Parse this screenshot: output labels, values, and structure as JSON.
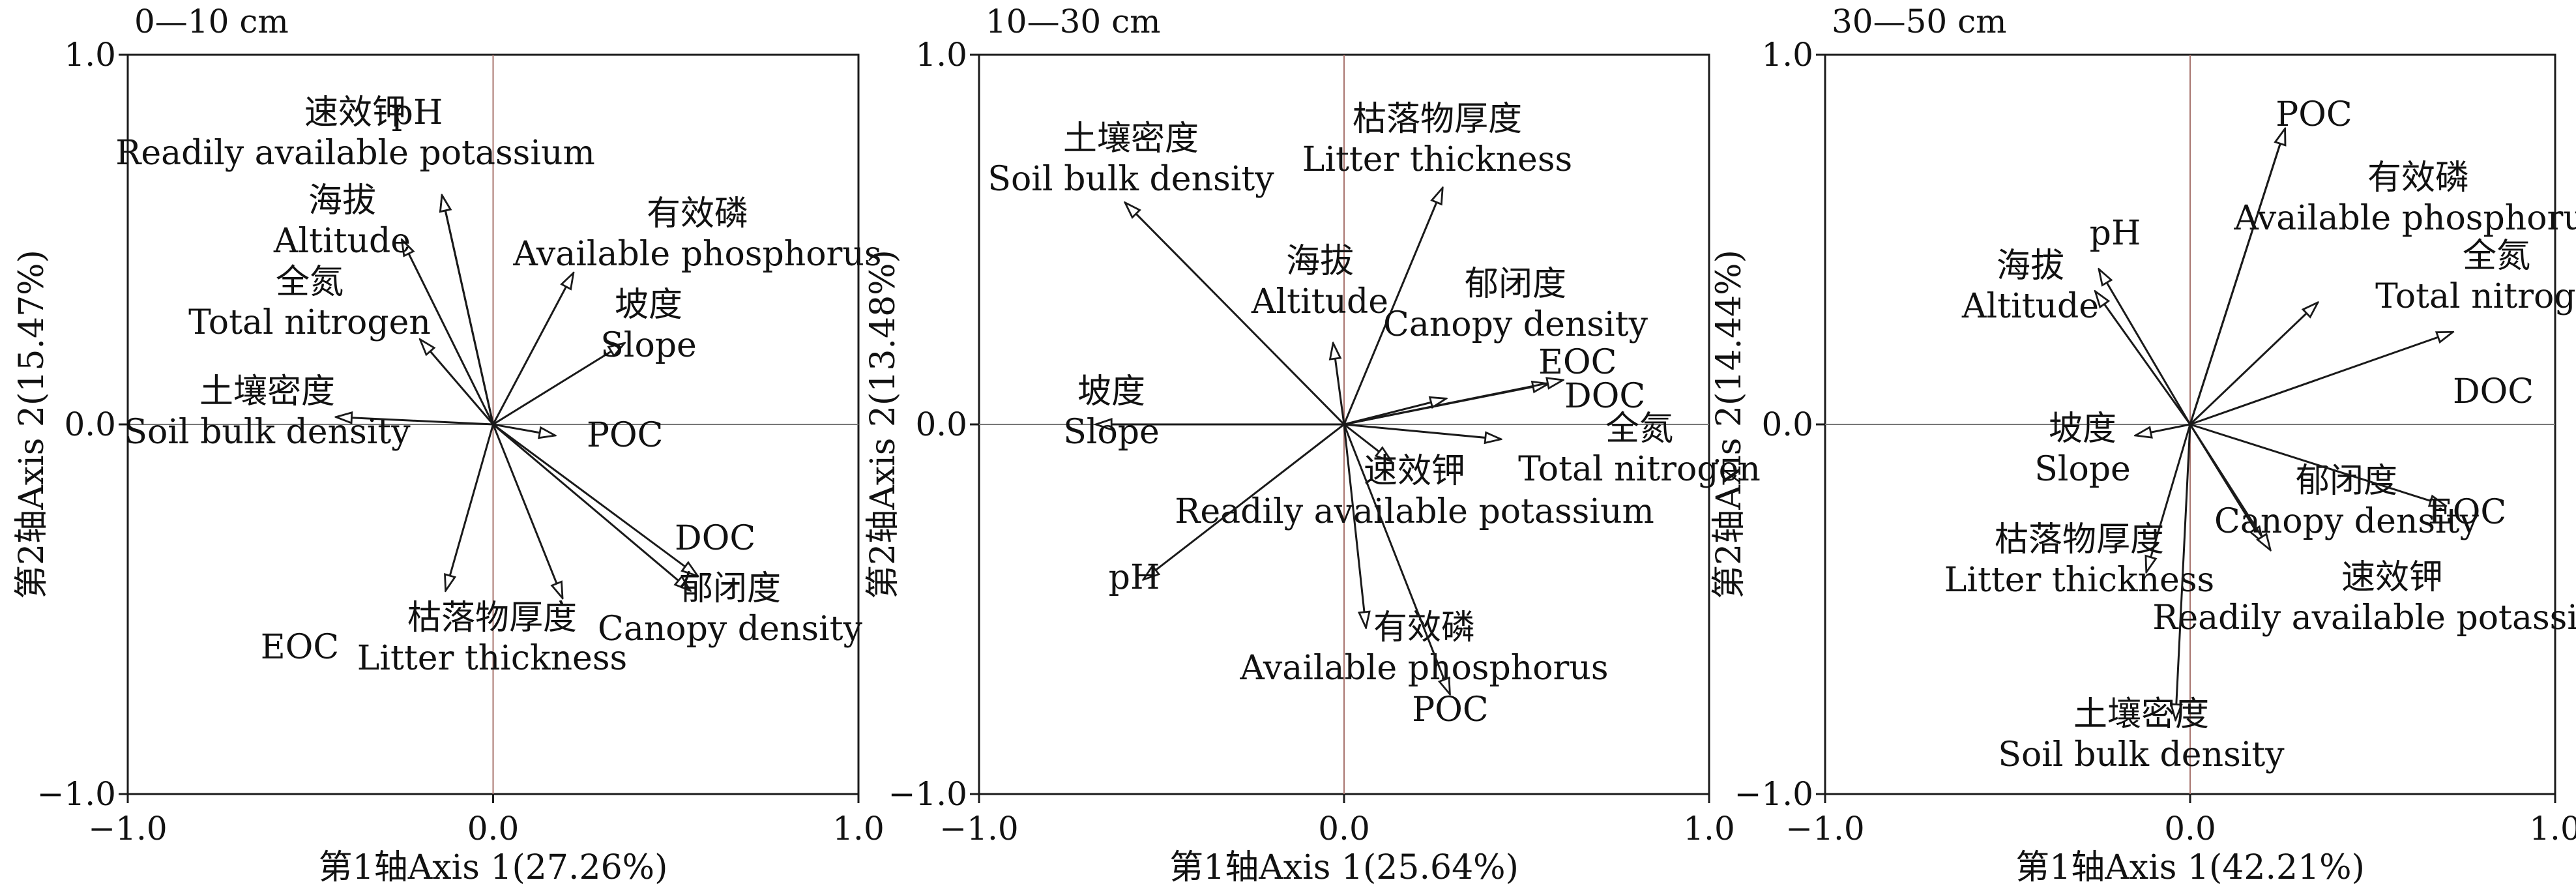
{
  "colors": {
    "axis": "#1a1a1a",
    "zero_line": "#a8756f",
    "arrow": "#1a1a1a"
  },
  "chart_data": [
    {
      "type": "scatter",
      "title": "0—10 cm",
      "xlabel": "第1轴Axis 1(27.26%)",
      "ylabel": "第2轴Axis 2(15.47%)",
      "xlim": [
        -1.0,
        1.0
      ],
      "ylim": [
        -1.0,
        1.0
      ],
      "xticks": [
        "−1.0",
        "0.0",
        "1.0"
      ],
      "yticks": [
        "1.0",
        "0.0",
        "−1.0"
      ],
      "vectors": [
        {
          "labels": [
            "pH"
          ],
          "x": -0.14,
          "y": 0.62
        },
        {
          "labels": [
            "速效钾",
            "Readily available potassium"
          ],
          "x": -0.14,
          "y": 0.62
        },
        {
          "labels": [
            "海拔",
            "Altitude"
          ],
          "x": -0.25,
          "y": 0.5
        },
        {
          "labels": [
            "全氮",
            "Total nitrogen"
          ],
          "x": -0.2,
          "y": 0.23
        },
        {
          "labels": [
            "土壤密度",
            "Soil bulk density"
          ],
          "x": -0.43,
          "y": 0.02
        },
        {
          "labels": [
            "有效磷",
            "Available phosphorus"
          ],
          "x": 0.22,
          "y": 0.41
        },
        {
          "labels": [
            "坡度",
            "Slope"
          ],
          "x": 0.36,
          "y": 0.22
        },
        {
          "labels": [
            "POC"
          ],
          "x": 0.17,
          "y": -0.03
        },
        {
          "labels": [
            "DOC"
          ],
          "x": 0.56,
          "y": -0.41
        },
        {
          "labels": [
            "郁闭度",
            "Canopy density"
          ],
          "x": 0.54,
          "y": -0.45
        },
        {
          "labels": [
            "枯落物厚度",
            "Litter thickness"
          ],
          "x": 0.19,
          "y": -0.47
        },
        {
          "labels": [
            "EOC"
          ],
          "x": -0.13,
          "y": -0.45
        }
      ]
    },
    {
      "type": "scatter",
      "title": "10—30 cm",
      "xlabel": "第1轴Axis 1(25.64%)",
      "ylabel": "第2轴Axis 2(13.48%)",
      "xlim": [
        -1.0,
        1.0
      ],
      "ylim": [
        -1.0,
        1.0
      ],
      "xticks": [
        "−1.0",
        "0.0",
        "1.0"
      ],
      "yticks": [
        "1.0",
        "0.0",
        "−1.0"
      ],
      "vectors": [
        {
          "labels": [
            "土壤密度",
            "Soil bulk density"
          ],
          "x": -0.6,
          "y": 0.6
        },
        {
          "labels": [
            "枯落物厚度",
            "Litter thickness"
          ],
          "x": 0.27,
          "y": 0.64
        },
        {
          "labels": [
            "海拔",
            "Altitude"
          ],
          "x": -0.03,
          "y": 0.22
        },
        {
          "labels": [
            "郁闭度",
            "Canopy density"
          ],
          "x": 0.28,
          "y": 0.07
        },
        {
          "labels": [
            "EOC"
          ],
          "x": 0.56,
          "y": 0.11
        },
        {
          "labels": [
            "DOC"
          ],
          "x": 0.6,
          "y": 0.12
        },
        {
          "labels": [
            "全氮",
            "Total nitrogen"
          ],
          "x": 0.43,
          "y": -0.04
        },
        {
          "labels": [
            "坡度",
            "Slope"
          ],
          "x": -0.68,
          "y": 0.0
        },
        {
          "labels": [
            "速效钾",
            "Readily available potassium"
          ],
          "x": 0.13,
          "y": -0.1
        },
        {
          "labels": [
            "pH"
          ],
          "x": -0.55,
          "y": -0.42
        },
        {
          "labels": [
            "有效磷",
            "Available phosphorus"
          ],
          "x": 0.06,
          "y": -0.55
        },
        {
          "labels": [
            "POC"
          ],
          "x": 0.29,
          "y": -0.73
        }
      ]
    },
    {
      "type": "scatter",
      "title": "30—50 cm",
      "xlabel": "第1轴Axis 1(42.21%)",
      "ylabel": "第2轴Axis 2(14.44%)",
      "xlim": [
        -1.0,
        1.0
      ],
      "ylim": [
        -1.0,
        1.0
      ],
      "xticks": [
        "−1.0",
        "0.0",
        "1.0"
      ],
      "yticks": [
        "1.0",
        "0.0",
        "−1.0"
      ],
      "vectors": [
        {
          "labels": [
            "POC"
          ],
          "x": 0.26,
          "y": 0.8
        },
        {
          "labels": [
            "有效磷",
            "Available phosphorus"
          ],
          "x": 0.26,
          "y": 0.8
        },
        {
          "labels": [
            "pH"
          ],
          "x": -0.25,
          "y": 0.42
        },
        {
          "labels": [
            "海拔",
            "Altitude"
          ],
          "x": -0.26,
          "y": 0.36
        },
        {
          "labels": [
            "全氮",
            "Total nitrogen"
          ],
          "x": 0.35,
          "y": 0.33
        },
        {
          "labels": [
            "DOC"
          ],
          "x": 0.72,
          "y": 0.25
        },
        {
          "labels": [
            "坡度",
            "Slope"
          ],
          "x": -0.15,
          "y": -0.03
        },
        {
          "labels": [
            "郁闭度",
            "Canopy density"
          ],
          "x": 0.2,
          "y": -0.32
        },
        {
          "labels": [
            "EOC"
          ],
          "x": 0.7,
          "y": -0.22
        },
        {
          "labels": [
            "枯落物厚度",
            "Litter thickness"
          ],
          "x": -0.12,
          "y": -0.4
        },
        {
          "labels": [
            "速效钾",
            "Readily available potassium"
          ],
          "x": 0.22,
          "y": -0.34
        },
        {
          "labels": [
            "土壤密度",
            "Soil bulk density"
          ],
          "x": -0.04,
          "y": -0.8
        }
      ]
    }
  ]
}
